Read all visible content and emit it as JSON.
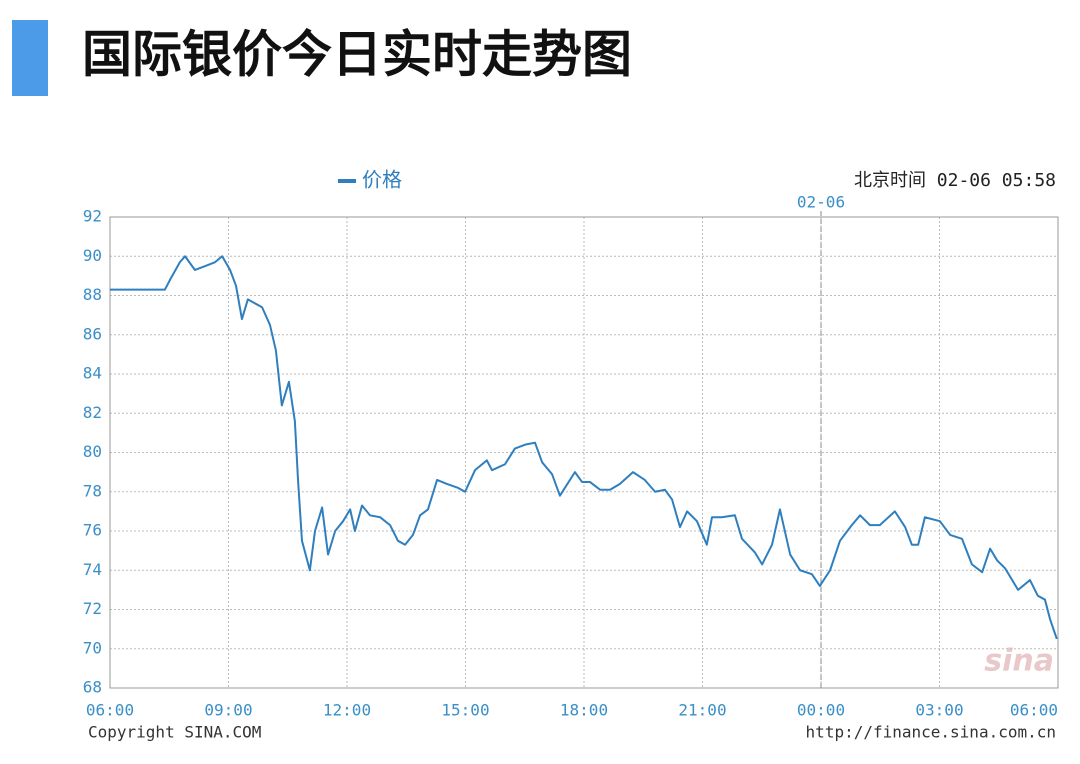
{
  "chart_data": {
    "type": "line",
    "title": "国际银价今日实时走势图",
    "timestamp": "北京时间 02-06 05:58",
    "annotations": [
      {
        "x": 18,
        "label": "02-06"
      }
    ],
    "footer_left": "Copyright  SINA.COM",
    "footer_right": "http://finance.sina.com.cn",
    "watermark": "sina",
    "grid": true,
    "x": [
      0,
      1.14,
      1.39,
      1.52,
      1.77,
      1.9,
      2.15,
      2.41,
      2.66,
      2.84,
      3.04,
      3.19,
      3.34,
      3.49,
      3.85,
      4.05,
      4.2,
      4.35,
      4.53,
      4.68,
      4.76,
      4.86,
      5.06,
      5.19,
      5.37,
      5.52,
      5.7,
      5.9,
      6.08,
      6.2,
      6.38,
      6.58,
      6.84,
      7.09,
      7.29,
      7.47,
      7.67,
      7.85,
      8.05,
      8.28,
      8.53,
      8.81,
      8.99,
      9.24,
      9.54,
      9.67,
      10,
      10.25,
      10.51,
      10.76,
      10.94,
      11.19,
      11.39,
      11.77,
      11.95,
      12.15,
      12.41,
      12.66,
      12.91,
      13.24,
      13.54,
      13.8,
      14.05,
      14.23,
      14.43,
      14.61,
      14.86,
      15.11,
      15.24,
      15.49,
      15.82,
      16,
      16.33,
      16.51,
      16.76,
      16.96,
      17.22,
      17.47,
      17.77,
      17.97,
      18.23,
      18.48,
      18.78,
      18.99,
      19.24,
      19.49,
      19.87,
      20.13,
      20.3,
      20.46,
      20.63,
      21.01,
      21.27,
      21.57,
      21.82,
      22.08,
      22.28,
      22.46,
      22.66,
      22.99,
      23.29,
      23.49,
      23.67,
      23.8,
      23.97
    ],
    "series": [
      {
        "name": "价格",
        "color": "#2f7fbf",
        "values": [
          88.3,
          88.3,
          88.3,
          88.8,
          89.7,
          90.0,
          89.3,
          89.5,
          89.7,
          90.0,
          89.3,
          88.5,
          86.8,
          87.8,
          87.4,
          86.5,
          85.2,
          82.4,
          83.6,
          81.6,
          78.6,
          75.5,
          74.0,
          76.0,
          77.2,
          74.8,
          76.0,
          76.5,
          77.1,
          76.0,
          77.3,
          76.8,
          76.7,
          76.3,
          75.5,
          75.3,
          75.8,
          76.8,
          77.1,
          78.6,
          78.4,
          78.2,
          78.0,
          79.1,
          79.6,
          79.1,
          79.4,
          80.2,
          80.4,
          80.5,
          79.5,
          78.9,
          77.8,
          79.0,
          78.5,
          78.5,
          78.1,
          78.1,
          78.4,
          79.0,
          78.6,
          78.0,
          78.1,
          77.6,
          76.2,
          77.0,
          76.5,
          75.3,
          76.7,
          76.7,
          76.8,
          75.6,
          74.9,
          74.3,
          75.3,
          77.1,
          74.8,
          74.0,
          73.8,
          73.2,
          74.0,
          75.5,
          76.3,
          76.8,
          76.3,
          76.3,
          77.0,
          76.2,
          75.3,
          75.3,
          76.7,
          76.5,
          75.8,
          75.6,
          74.3,
          73.9,
          75.1,
          74.5,
          74.1,
          73.0,
          73.5,
          72.7,
          72.5,
          71.5,
          70.5
        ]
      }
    ],
    "xlim": [
      0,
      24
    ],
    "xticks": [
      {
        "value": 0,
        "label": "06:00"
      },
      {
        "value": 3,
        "label": "09:00"
      },
      {
        "value": 6,
        "label": "12:00"
      },
      {
        "value": 9,
        "label": "15:00"
      },
      {
        "value": 12,
        "label": "18:00"
      },
      {
        "value": 15,
        "label": "21:00"
      },
      {
        "value": 18,
        "label": "00:00"
      },
      {
        "value": 21,
        "label": "03:00"
      },
      {
        "value": 24,
        "label": "06:00"
      }
    ],
    "ylim": [
      68,
      92
    ],
    "yticks": [
      68,
      70,
      72,
      74,
      76,
      78,
      80,
      82,
      84,
      86,
      88,
      90,
      92
    ]
  }
}
